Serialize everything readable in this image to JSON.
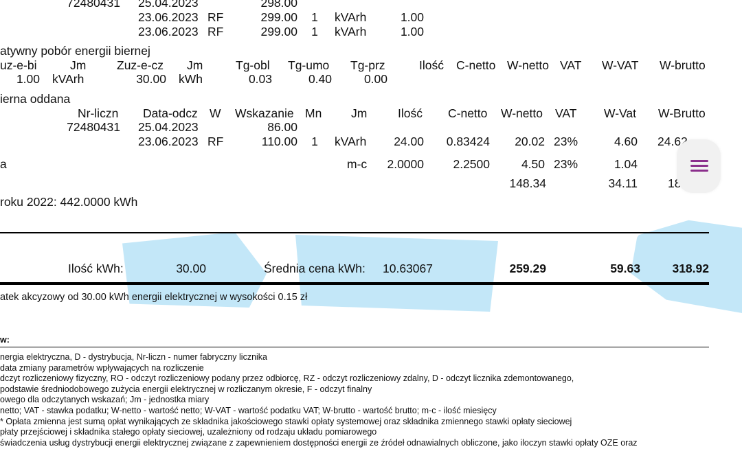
{
  "rows_top": [
    [
      "72480431",
      "25.04.2023",
      "",
      "298.00",
      "",
      "",
      ""
    ],
    [
      "",
      "23.06.2023",
      "RF",
      "299.00",
      "1",
      "kVArh",
      "1.00"
    ],
    [
      "",
      "23.06.2023",
      "RF",
      "299.00",
      "1",
      "kVArh",
      "1.00"
    ]
  ],
  "section1": {
    "title": "atywny pobór energii biernej",
    "headers": [
      "uz-e-bi",
      "Jm",
      "Zuz-e-cz",
      "Jm",
      "Tg-obl",
      "Tg-umo",
      "Tg-prz",
      "Ilość",
      "C-netto",
      "W-netto",
      "VAT",
      "W-VAT",
      "W-brutto"
    ],
    "row": [
      "1.00",
      "kVArh",
      "30.00",
      "kWh",
      "0.03",
      "0.40",
      "0.00"
    ]
  },
  "section2": {
    "title": "ierna oddana",
    "headers": [
      "Nr-liczn",
      "Data-odcz",
      "W",
      "Wskazanie",
      "Mn",
      "Jm",
      "Ilość",
      "C-netto",
      "W-netto",
      "VAT",
      "W-Vat",
      "W-Brutto"
    ],
    "row1": [
      "72480431",
      "25.04.2023",
      "",
      "86.00"
    ],
    "row2": [
      "23.06.2023",
      "RF",
      "110.00",
      "1",
      "kVArh",
      "24.00",
      "0.83424",
      "20.02",
      "23%",
      "4.60",
      "24.62"
    ]
  },
  "row_a": {
    "label": "a",
    "jm": "m-c",
    "ilosc": "2.0000",
    "cnetto": "2.2500",
    "wnetto": "4.50",
    "vat": "23%",
    "wvat": "1.04"
  },
  "subtotal": {
    "wnetto": "148.34",
    "wvat": "34.11",
    "wbrutto": "18"
  },
  "year_line": "roku 2022: 442.0000 kWh",
  "summary": {
    "qty_label": "Ilość kWh:",
    "qty_value": "30.00",
    "avg_label": "Średnia cena kWh:",
    "avg_value": "10.63067",
    "netto": "259.29",
    "vat": "59.63",
    "brutto": "318.92"
  },
  "excise_note": "atek akcyzowy od 30.00 kWh energii elektrycznej w wysokości 0.15 zł",
  "legend": {
    "heading": "w:",
    "lines": [
      "nergia elektryczna, D - dystrybucja, Nr-liczn - numer fabryczny licznika",
      "data zmiany parametrów wpływających na rozliczenie",
      "dczyt rozliczeniowy fizyczny, RO - odczyt rozliczeniowy podany przez odbiorcę, RZ - odczyt rozliczeniowy zdalny, D - odczyt licznika zdemontowanego,",
      "podstawie średniodobowego zużycia energii elektrycznej w rozliczanym okresie, F - odczyt finalny",
      "owego dla odczytanych wskazań; Jm - jednostka miary",
      "netto; VAT - stawka podatku; W-netto - wartość netto; W-VAT - wartość podatku VAT; W-brutto - wartość brutto; m-c - ilość miesięcy",
      "* Opłata zmienna jest sumą opłat wynikających ze składnika jakościowego stawki opłaty systemowej oraz składnika zmiennego stawki opłaty sieciowej",
      "płaty przejściowej i składnika stałego opłaty sieciowej, uzależniony od rodzaju układu pomiarowego",
      "świadczenia usług dystrybucji energii elektrycznej związane z zapewnieniem dostępności energii ze źródeł odnawialnych obliczone, jako iloczyn stawki opłaty OZE oraz"
    ]
  },
  "menu_icon": "hamburger-menu-icon",
  "accent_colors": {
    "highlight": "#b9e3f7",
    "menu_icon": "#8b2f8c"
  }
}
